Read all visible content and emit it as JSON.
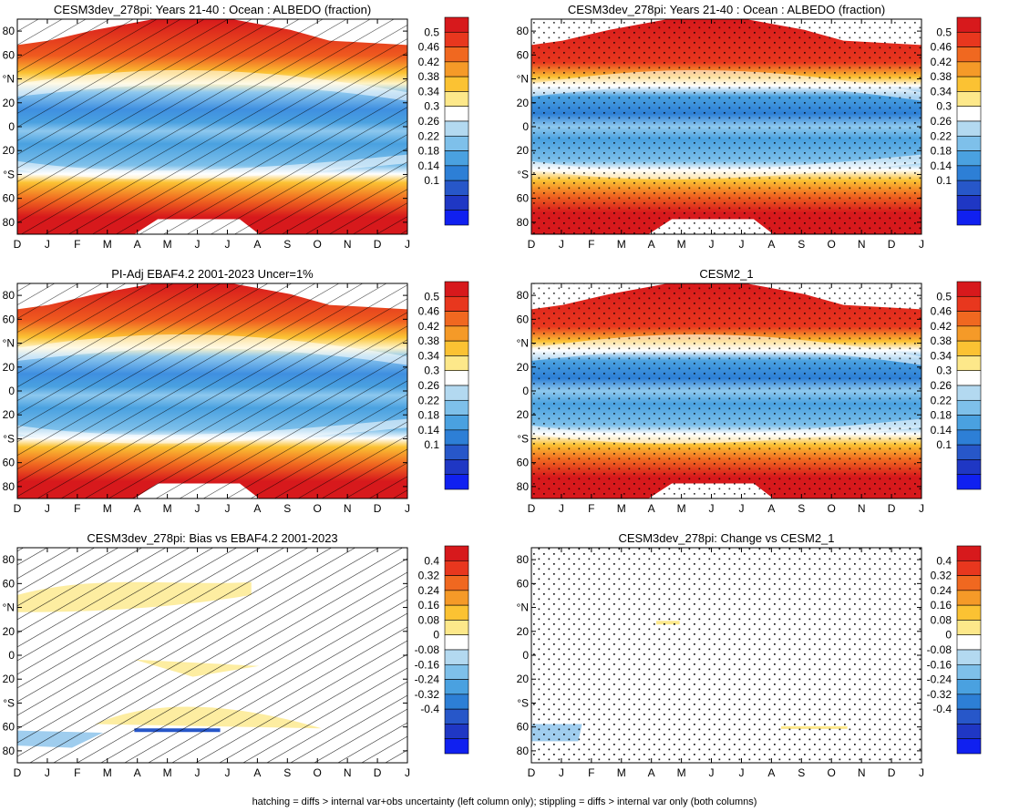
{
  "footer": "hatching = diffs > internal var+obs uncertainty (left column only); stippling = diffs > internal var only (both columns)",
  "months": [
    "D",
    "J",
    "F",
    "M",
    "A",
    "M",
    "J",
    "J",
    "A",
    "S",
    "O",
    "N",
    "D",
    "J"
  ],
  "lat_ticks": [
    "80",
    "60",
    "°N",
    "20",
    "0",
    "20",
    "°S",
    "60",
    "80"
  ],
  "colorbars": {
    "abs": {
      "labels": [
        "0.5",
        "0.46",
        "0.42",
        "0.38",
        "0.34",
        "0.3",
        "0.26",
        "0.22",
        "0.18",
        "0.14",
        "0.1"
      ],
      "colors": [
        "#d7191c",
        "#e8371e",
        "#f06820",
        "#f59a28",
        "#fbc233",
        "#fde88a",
        "#ffffff",
        "#b3d9f0",
        "#7ec0ea",
        "#4aa1e0",
        "#2d7fd6",
        "#2757c9",
        "#1f37c4",
        "#1020f0"
      ]
    },
    "diff": {
      "labels": [
        "0.4",
        "0.32",
        "0.24",
        "0.16",
        "0.08",
        "0",
        "-0.08",
        "-0.16",
        "-0.24",
        "-0.32",
        "-0.4"
      ],
      "colors": [
        "#d7191c",
        "#e8371e",
        "#f06820",
        "#f59a28",
        "#fbc233",
        "#fde88a",
        "#ffffff",
        "#b3d9f0",
        "#7ec0ea",
        "#4aa1e0",
        "#2d7fd6",
        "#2757c9",
        "#1f37c4",
        "#1020f0"
      ]
    }
  },
  "chart_data": [
    {
      "type": "heatmap",
      "title": "CESM3dev_278pi: Years 21-40 : Ocean : ALBEDO (fraction)",
      "field": "abs",
      "pattern": "hatch",
      "x": [
        "D",
        "J",
        "F",
        "M",
        "A",
        "M",
        "J",
        "J",
        "A",
        "S",
        "O",
        "N",
        "D",
        "J"
      ],
      "ylim": [
        -90,
        90
      ],
      "zlim": [
        0.1,
        0.5
      ]
    },
    {
      "type": "heatmap",
      "title": "CESM3dev_278pi: Years 21-40 : Ocean : ALBEDO (fraction)",
      "field": "abs",
      "pattern": "stipple",
      "x": [
        "D",
        "J",
        "F",
        "M",
        "A",
        "M",
        "J",
        "J",
        "A",
        "S",
        "O",
        "N",
        "D",
        "J"
      ],
      "ylim": [
        -90,
        90
      ],
      "zlim": [
        0.1,
        0.5
      ]
    },
    {
      "type": "heatmap",
      "title": "PI-Adj EBAF4.2 2001-2023 Uncer=1%",
      "field": "abs",
      "pattern": "hatch",
      "x": [
        "D",
        "J",
        "F",
        "M",
        "A",
        "M",
        "J",
        "J",
        "A",
        "S",
        "O",
        "N",
        "D",
        "J"
      ],
      "ylim": [
        -90,
        90
      ],
      "zlim": [
        0.1,
        0.5
      ]
    },
    {
      "type": "heatmap",
      "title": "CESM2_1",
      "field": "abs",
      "pattern": "stipple",
      "x": [
        "D",
        "J",
        "F",
        "M",
        "A",
        "M",
        "J",
        "J",
        "A",
        "S",
        "O",
        "N",
        "D",
        "J"
      ],
      "ylim": [
        -90,
        90
      ],
      "zlim": [
        0.1,
        0.5
      ]
    },
    {
      "type": "heatmap",
      "title": "CESM3dev_278pi: Bias vs EBAF4.2 2001-2023",
      "field": "diff",
      "pattern": "hatch",
      "x": [
        "D",
        "J",
        "F",
        "M",
        "A",
        "M",
        "J",
        "J",
        "A",
        "S",
        "O",
        "N",
        "D",
        "J"
      ],
      "ylim": [
        -90,
        90
      ],
      "zlim": [
        -0.4,
        0.4
      ]
    },
    {
      "type": "heatmap",
      "title": "CESM3dev_278pi: Change vs CESM2_1",
      "field": "diff",
      "pattern": "stipple",
      "x": [
        "D",
        "J",
        "F",
        "M",
        "A",
        "M",
        "J",
        "J",
        "A",
        "S",
        "O",
        "N",
        "D",
        "J"
      ],
      "ylim": [
        -90,
        90
      ],
      "zlim": [
        -0.4,
        0.4
      ]
    }
  ]
}
